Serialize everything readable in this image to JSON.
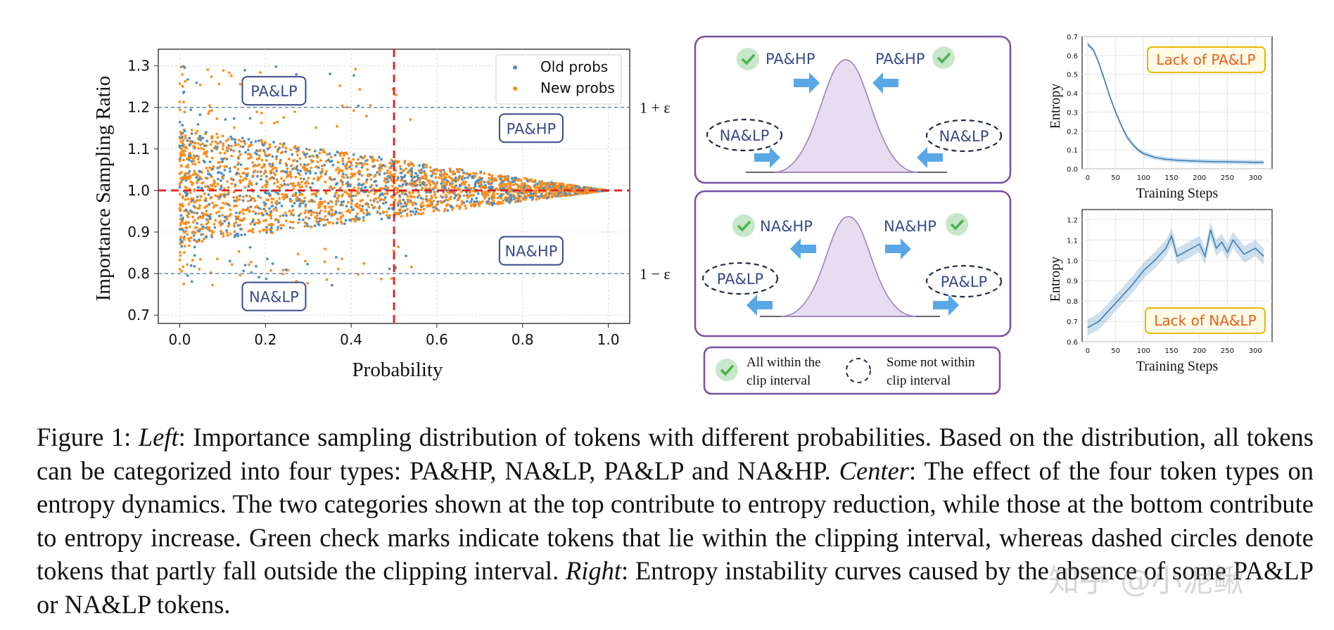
{
  "caption": {
    "fig_label": "Figure 1: ",
    "left_word": "Left",
    "left_text": ": Importance sampling distribution of tokens with different probabilities. Based on the distribution, all tokens can be categorized into four types: PA&HP, NA&LP, PA&LP and NA&HP. ",
    "center_word": "Center",
    "center_text": ": The effect of the four token types on entropy dynamics. The two categories shown at the top contribute to entropy reduction, while those at the bottom contribute to entropy increase. Green check marks indicate tokens that lie within the clipping interval, whereas dashed circles denote tokens that partly fall outside the clipping interval. ",
    "right_word": "Right",
    "right_text": ": Entropy instability curves caused by the absence of some PA&LP or NA&LP tokens."
  },
  "watermark": "知乎 @小泥鳅",
  "center_panel": {
    "top": {
      "label_tl": "PA&HP",
      "label_tr": "PA&HP",
      "label_ml": "NA&LP",
      "label_mr": "NA&LP"
    },
    "bottom": {
      "label_tl": "NA&HP",
      "label_tr": "NA&HP",
      "label_ml": "PA&LP",
      "label_mr": "PA&LP"
    },
    "legend": {
      "check_text_1": "All within the",
      "check_text_2": "clip interval",
      "dash_text_1": "Some not within",
      "dash_text_2": "clip interval"
    },
    "colors": {
      "frame": "#7a4fa3",
      "bell": "#e6def0",
      "arrow": "#5aa7e8",
      "check": "#4caf50",
      "text": "#3a4a8a"
    }
  },
  "chart_data": [
    {
      "type": "scatter",
      "title": "",
      "xlabel": "Probability",
      "ylabel": "Importance Sampling Ratio",
      "xlim": [
        -0.05,
        1.05
      ],
      "ylim": [
        0.68,
        1.34
      ],
      "x_ticks": [
        "0.0",
        "0.2",
        "0.4",
        "0.6",
        "0.8",
        "1.0"
      ],
      "y_ticks": [
        "0.7",
        "0.8",
        "0.9",
        "1.0",
        "1.1",
        "1.2",
        "1.3"
      ],
      "grid": true,
      "legend_position": "top-right",
      "series": [
        {
          "name": "Old probs",
          "color": "#4f8fc0"
        },
        {
          "name": "New probs",
          "color": "#ff8c1a"
        }
      ],
      "envelope": {
        "x": [
          0.0,
          1.0
        ],
        "upper": [
          1.15,
          1.0
        ],
        "lower": [
          0.87,
          1.0
        ]
      },
      "reference_lines": [
        {
          "axis": "y",
          "value": 1.2,
          "label": "1 + ε",
          "style": "dashed",
          "color": "#5b7fb3"
        },
        {
          "axis": "y",
          "value": 0.8,
          "label": "1 − ε",
          "style": "dashed",
          "color": "#5b7fb3"
        },
        {
          "axis": "y",
          "value": 1.0,
          "style": "dashed",
          "color": "#e02020"
        },
        {
          "axis": "x",
          "value": 0.5,
          "style": "dashed",
          "color": "#e02020"
        }
      ],
      "annotations": [
        {
          "text": "PA&LP",
          "x": 0.22,
          "y": 1.24
        },
        {
          "text": "PA&HP",
          "x": 0.82,
          "y": 1.15
        },
        {
          "text": "NA&HP",
          "x": 0.82,
          "y": 0.855
        },
        {
          "text": "NA&LP",
          "x": 0.22,
          "y": 0.745
        }
      ]
    },
    {
      "type": "line",
      "title": "",
      "xlabel": "Training Steps",
      "ylabel": "Entropy",
      "xlim": [
        -10,
        330
      ],
      "ylim": [
        0.0,
        0.7
      ],
      "x_ticks": [
        "0",
        "50",
        "100",
        "150",
        "200",
        "250",
        "300"
      ],
      "y_ticks": [
        "0.0",
        "0.1",
        "0.2",
        "0.3",
        "0.4",
        "0.5",
        "0.6",
        "0.7"
      ],
      "grid": true,
      "annotation": "Lack of PA&LP",
      "series": [
        {
          "name": "",
          "color": "#3a7fb8",
          "x": [
            0,
            10,
            20,
            30,
            40,
            50,
            60,
            70,
            80,
            90,
            100,
            120,
            140,
            160,
            180,
            200,
            220,
            240,
            260,
            280,
            300,
            315
          ],
          "y": [
            0.66,
            0.63,
            0.56,
            0.47,
            0.38,
            0.3,
            0.23,
            0.17,
            0.13,
            0.1,
            0.08,
            0.06,
            0.05,
            0.045,
            0.042,
            0.04,
            0.038,
            0.037,
            0.036,
            0.035,
            0.034,
            0.034
          ]
        }
      ]
    },
    {
      "type": "line",
      "title": "",
      "xlabel": "Training Steps",
      "ylabel": "Entropy",
      "xlim": [
        -10,
        330
      ],
      "ylim": [
        0.6,
        1.25
      ],
      "x_ticks": [
        "0",
        "50",
        "100",
        "150",
        "200",
        "250",
        "300"
      ],
      "y_ticks": [
        "0.6",
        "0.7",
        "0.8",
        "0.9",
        "1.0",
        "1.1",
        "1.2"
      ],
      "grid": true,
      "annotation": "Lack of NA&LP",
      "series": [
        {
          "name": "",
          "color": "#3a7fb8",
          "x": [
            0,
            20,
            40,
            60,
            80,
            100,
            120,
            140,
            150,
            160,
            180,
            200,
            210,
            220,
            230,
            240,
            250,
            260,
            280,
            300,
            315
          ],
          "y": [
            0.67,
            0.7,
            0.76,
            0.82,
            0.88,
            0.95,
            1.0,
            1.06,
            1.12,
            1.02,
            1.05,
            1.08,
            1.02,
            1.15,
            1.06,
            1.09,
            1.04,
            1.1,
            1.03,
            1.06,
            1.02
          ]
        }
      ]
    }
  ]
}
